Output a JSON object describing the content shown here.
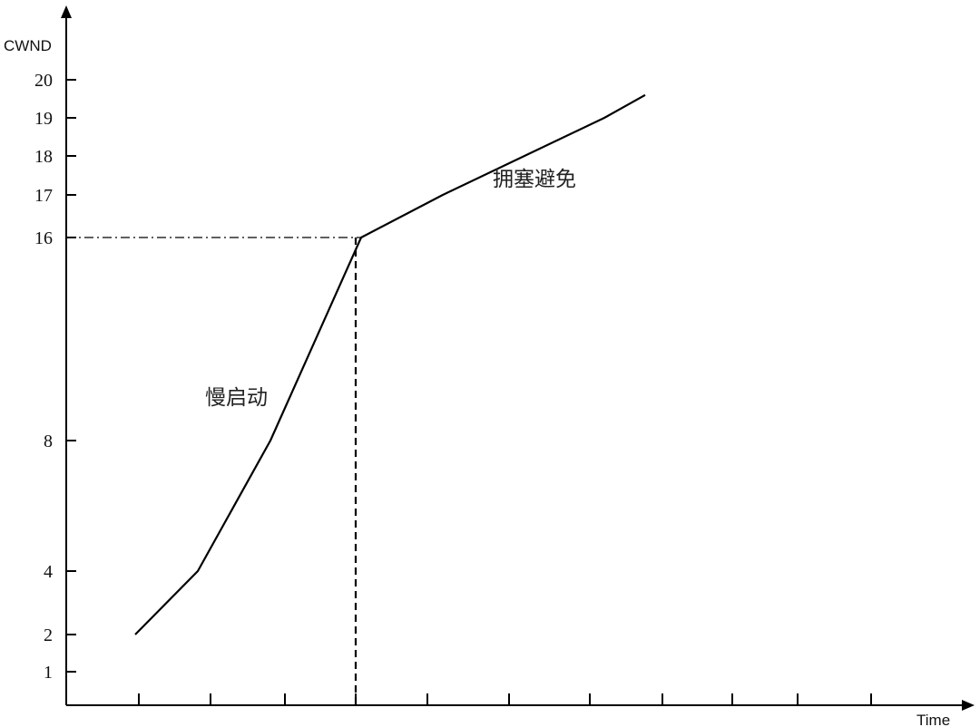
{
  "chart_data": {
    "type": "line",
    "ylabel": "CWND",
    "xlabel": "Time",
    "yticks": [
      {
        "label": "20",
        "value": 20
      },
      {
        "label": "19",
        "value": 19
      },
      {
        "label": "18",
        "value": 18
      },
      {
        "label": "17",
        "value": 17
      },
      {
        "label": "16",
        "value": 16
      },
      {
        "label": "8",
        "value": 8
      },
      {
        "label": "4",
        "value": 4
      },
      {
        "label": "2",
        "value": 2
      },
      {
        "label": "1",
        "value": 1
      }
    ],
    "xtick_count": 11,
    "threshold": 16,
    "series": [
      {
        "points": [
          {
            "x": 1,
            "y": 2
          },
          {
            "x": 2,
            "y": 4
          },
          {
            "x": 3,
            "y": 8
          },
          {
            "x": 4,
            "y": 16
          },
          {
            "x": 5,
            "y": 17
          },
          {
            "x": 6,
            "y": 18
          },
          {
            "x": 7,
            "y": 19
          },
          {
            "x": 7.5,
            "y": 19.6
          }
        ]
      }
    ],
    "annotations": {
      "slow_start": "慢启动",
      "congestion_avoidance": "拥塞避免"
    }
  }
}
